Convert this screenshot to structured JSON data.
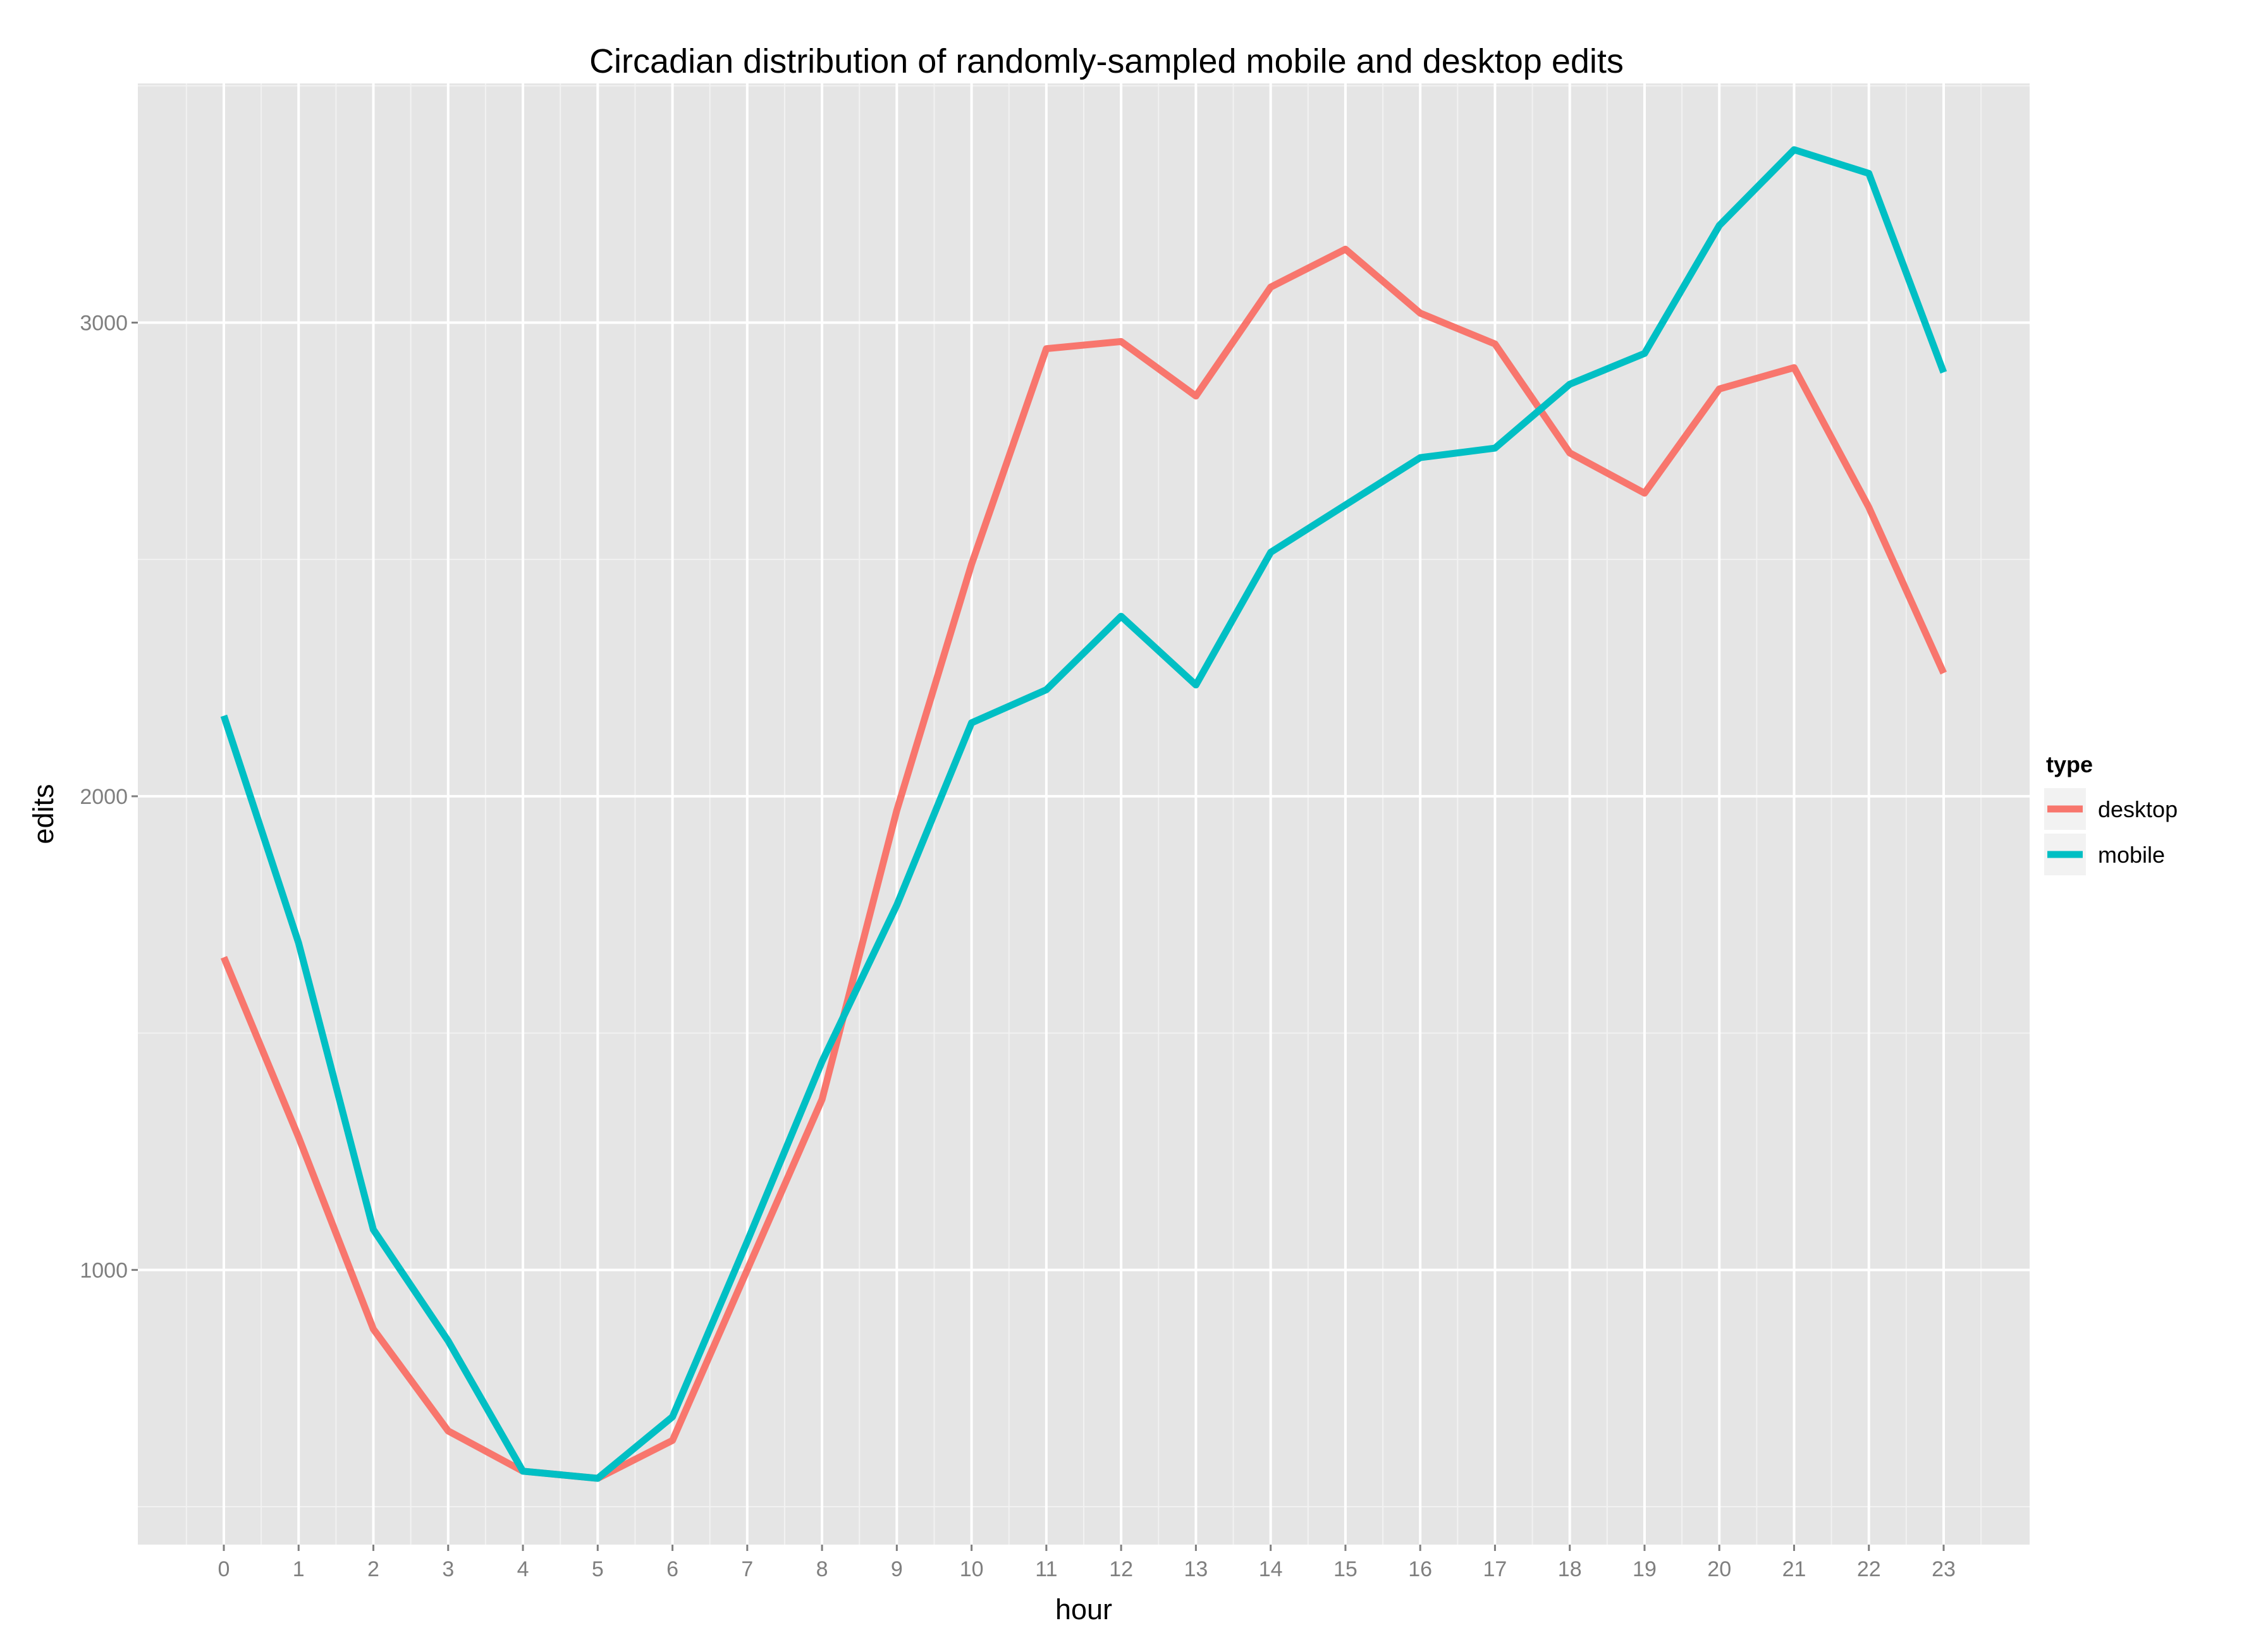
{
  "chart_data": {
    "type": "line",
    "title": "Circadian distribution of randomly-sampled mobile and desktop edits",
    "xlabel": "hour",
    "ylabel": "edits",
    "x": [
      0,
      1,
      2,
      3,
      4,
      5,
      6,
      7,
      8,
      9,
      10,
      11,
      12,
      13,
      14,
      15,
      16,
      17,
      18,
      19,
      20,
      21,
      22,
      23
    ],
    "x_tick_labels": [
      "0",
      "1",
      "2",
      "3",
      "4",
      "5",
      "6",
      "7",
      "8",
      "9",
      "10",
      "11",
      "12",
      "13",
      "14",
      "15",
      "16",
      "17",
      "18",
      "19",
      "20",
      "21",
      "22",
      "23"
    ],
    "y_ticks": [
      1000,
      2000,
      3000
    ],
    "y_tick_labels": [
      "1000",
      "2000",
      "3000"
    ],
    "xlim": [
      -1.15,
      24.15
    ],
    "ylim": [
      420,
      3505
    ],
    "grid": true,
    "legend": {
      "title": "type",
      "position": "right"
    },
    "series": [
      {
        "name": "desktop",
        "color": "#F8766D",
        "values": [
          1660,
          1280,
          875,
          660,
          575,
          560,
          640,
          1000,
          1360,
          1970,
          2490,
          2945,
          2960,
          2845,
          3075,
          3155,
          3020,
          2955,
          2725,
          2640,
          2860,
          2905,
          2610,
          2260
        ]
      },
      {
        "name": "mobile",
        "color": "#00BFC4",
        "values": [
          2170,
          1690,
          1085,
          850,
          575,
          560,
          690,
          1060,
          1440,
          1770,
          2155,
          2225,
          2380,
          2235,
          2515,
          2615,
          2715,
          2735,
          2870,
          2935,
          3205,
          3365,
          3315,
          2895
        ]
      }
    ]
  }
}
